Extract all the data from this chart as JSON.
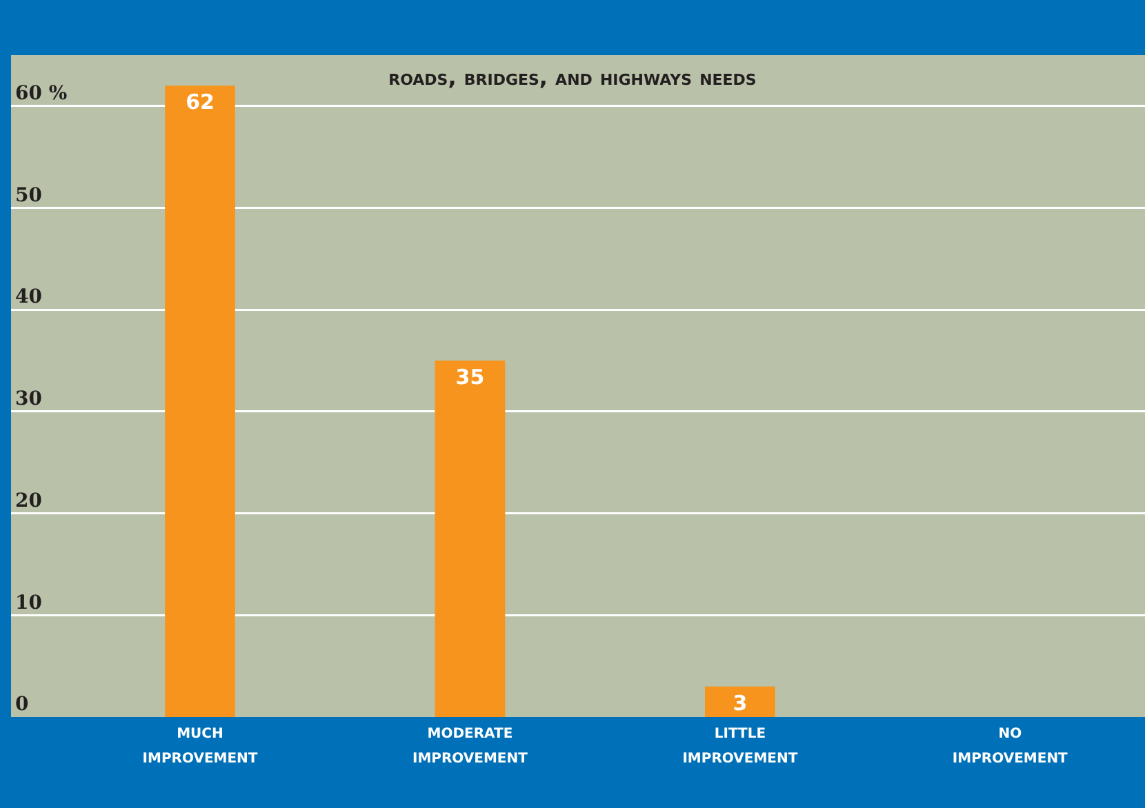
{
  "chart_data": {
    "type": "bar",
    "title": "roads, bridges, and highways needs",
    "categories": [
      "much improvement",
      "moderate improvement",
      "little improvement",
      "no improvement"
    ],
    "values": [
      62,
      35,
      3,
      0
    ],
    "value_labels": [
      "62",
      "35",
      "3",
      null
    ],
    "color": "#f7941d",
    "ylim": [
      0,
      65
    ],
    "yticks": [
      0,
      10,
      20,
      30,
      40,
      50,
      {
        "value": 60,
        "label": "60 %"
      }
    ],
    "grid": "y"
  }
}
